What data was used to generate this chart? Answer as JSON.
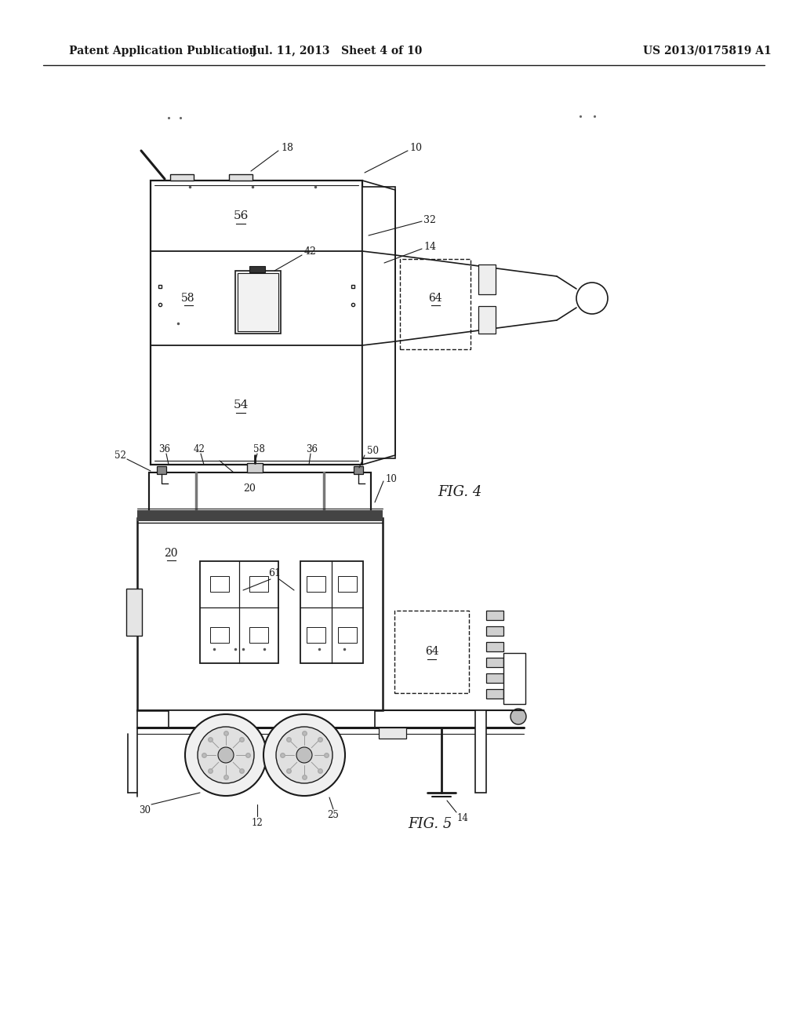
{
  "bg_color": "#ffffff",
  "lc": "#1a1a1a",
  "header_left": "Patent Application Publication",
  "header_mid": "Jul. 11, 2013   Sheet 4 of 10",
  "header_right": "US 2013/0175819 A1"
}
